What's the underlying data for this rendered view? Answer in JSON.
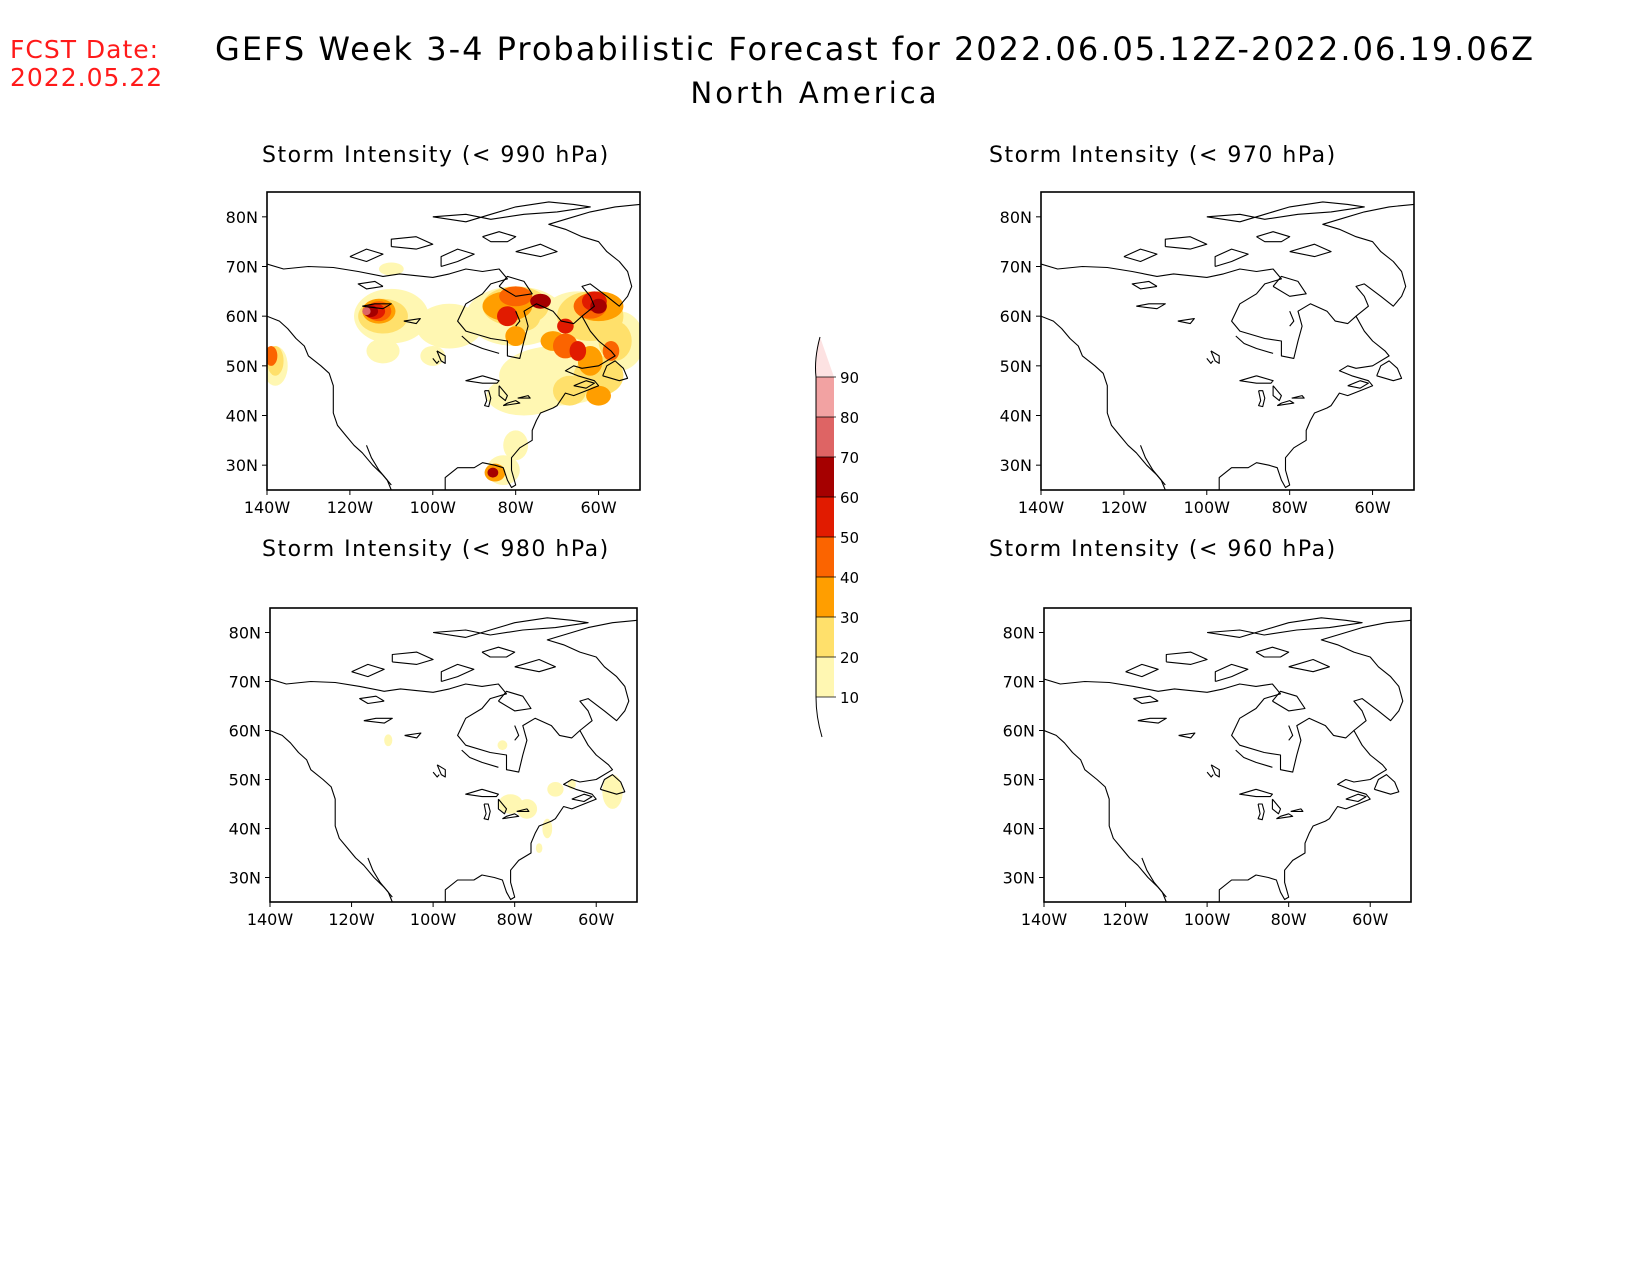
{
  "header": {
    "fcst_label": "FCST Date:",
    "fcst_date": "2022.05.22",
    "title": "GEFS Week 3-4 Probabilistic Forecast for 2022.06.05.12Z-2022.06.19.06Z",
    "subtitle": "North America"
  },
  "map": {
    "lon_ticks": [
      "140W",
      "120W",
      "100W",
      "80W",
      "60W"
    ],
    "lat_ticks": [
      "80N",
      "70N",
      "60N",
      "50N",
      "40N",
      "30N"
    ],
    "lon_range": [
      -140,
      -50
    ],
    "lat_range": [
      25,
      85
    ]
  },
  "panels": [
    {
      "title": "Storm Intensity (< 990 hPa)",
      "threshold_hPa": 990,
      "has_probability": true
    },
    {
      "title": "Storm Intensity (< 970 hPa)",
      "threshold_hPa": 970,
      "has_probability": false
    },
    {
      "title": "Storm Intensity (< 980 hPa)",
      "threshold_hPa": 980,
      "has_probability": true
    },
    {
      "title": "Storm Intensity (< 960 hPa)",
      "threshold_hPa": 960,
      "has_probability": false
    }
  ],
  "colorbar": {
    "labels": [
      "90",
      "80",
      "70",
      "60",
      "50",
      "40",
      "30",
      "20",
      "10"
    ],
    "colors": [
      "#fde2e2",
      "#f2a2a2",
      "#de6464",
      "#a50000",
      "#e11b00",
      "#fb6400",
      "#ff9e00",
      "#ffe06b",
      "#fff7b2"
    ]
  }
}
